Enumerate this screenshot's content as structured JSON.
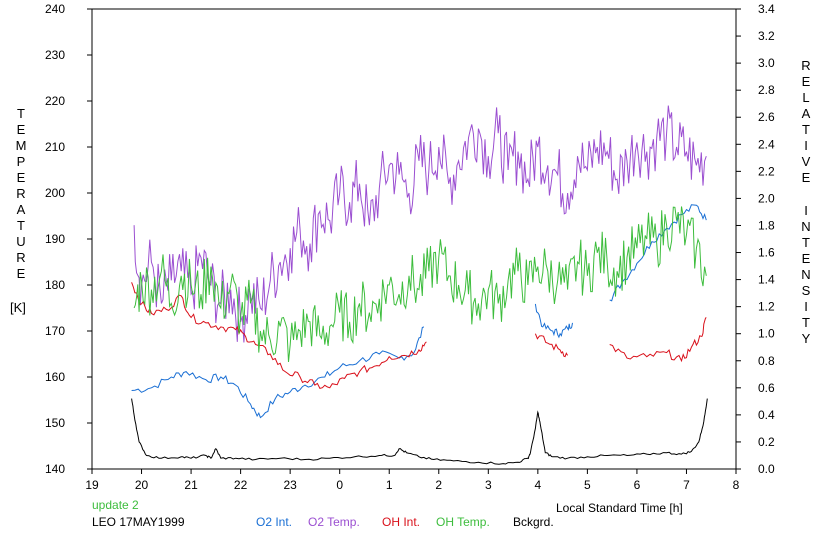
{
  "chart_data": {
    "type": "line",
    "y_left_label_letters": [
      "T",
      "E",
      "M",
      "P",
      "E",
      "R",
      "A",
      "T",
      "U",
      "R",
      "E"
    ],
    "y_left_unit": "[K]",
    "y_right_label_letters_1": [
      "R",
      "E",
      "L",
      "A",
      "T",
      "I",
      "V",
      "E"
    ],
    "y_right_label_letters_2": [
      "I",
      "N",
      "T",
      "E",
      "N",
      "S",
      "I",
      "T",
      "Y"
    ],
    "xlabel": "Local Standard Time [h]",
    "x_ticks": [
      {
        "pos": 19,
        "label": "19"
      },
      {
        "pos": 20,
        "label": "20"
      },
      {
        "pos": 21,
        "label": "21"
      },
      {
        "pos": 22,
        "label": "22"
      },
      {
        "pos": 23,
        "label": "23"
      },
      {
        "pos": 24,
        "label": "0"
      },
      {
        "pos": 25,
        "label": "1"
      },
      {
        "pos": 26,
        "label": "2"
      },
      {
        "pos": 27,
        "label": "3"
      },
      {
        "pos": 28,
        "label": "4"
      },
      {
        "pos": 29,
        "label": "5"
      },
      {
        "pos": 30,
        "label": "6"
      },
      {
        "pos": 31,
        "label": "7"
      },
      {
        "pos": 32,
        "label": "8"
      }
    ],
    "xlim": [
      19,
      32
    ],
    "ylim_left": [
      140,
      240
    ],
    "ylim_right": [
      0.0,
      3.4
    ],
    "y_left_ticks": [
      140,
      150,
      160,
      170,
      180,
      190,
      200,
      210,
      220,
      230,
      240
    ],
    "y_right_ticks": [
      "0.0",
      "0.2",
      "0.4",
      "0.6",
      "0.8",
      "1.0",
      "1.2",
      "1.4",
      "1.6",
      "1.8",
      "2.0",
      "2.2",
      "2.4",
      "2.6",
      "2.8",
      "3.0",
      "3.2",
      "3.4"
    ],
    "series": [
      {
        "name": "O2 Int.",
        "color": "#1a6fd4",
        "axis": "right",
        "segments": [
          {
            "x": [
              19.8,
              20.2,
              20.6,
              20.9,
              21.3,
              21.6,
              21.9,
              22.2,
              22.4,
              22.7,
              23.0,
              23.3,
              23.7,
              24.0,
              24.4,
              24.8,
              25.2,
              25.5,
              25.7
            ],
            "y": [
              0.58,
              0.6,
              0.68,
              0.72,
              0.66,
              0.68,
              0.62,
              0.48,
              0.38,
              0.52,
              0.57,
              0.62,
              0.68,
              0.75,
              0.8,
              0.85,
              0.82,
              0.86,
              1.05
            ]
          },
          {
            "x": [
              27.95,
              28.1,
              28.3,
              28.45,
              28.6,
              28.7
            ],
            "y": [
              1.22,
              1.05,
              1.02,
              1.0,
              1.04,
              1.08
            ]
          },
          {
            "x": [
              29.45,
              29.7,
              30.0,
              30.3,
              30.6,
              30.9,
              31.2,
              31.4
            ],
            "y": [
              1.25,
              1.38,
              1.52,
              1.68,
              1.78,
              1.88,
              1.95,
              1.84
            ]
          }
        ]
      },
      {
        "name": "O2 Temp.",
        "color": "#9b4fd1",
        "axis": "left",
        "segments": [
          {
            "x": [
              19.85,
              20.0,
              20.2,
              20.4,
              20.6,
              20.8,
              21.0,
              21.2,
              21.4,
              21.6,
              21.8,
              22.0,
              22.2,
              22.4,
              22.6,
              22.8,
              23.0,
              23.2,
              23.4,
              23.6,
              23.8,
              24.0,
              24.2,
              24.4,
              24.6,
              24.8,
              25.0,
              25.2,
              25.4,
              25.6,
              25.8,
              26.0,
              26.2,
              26.4,
              26.6,
              26.8,
              27.0,
              27.2,
              27.4,
              27.6,
              27.8,
              28.0,
              28.2,
              28.4,
              28.6,
              28.8,
              29.0,
              29.2,
              29.4,
              29.6,
              29.8,
              30.0,
              30.2,
              30.4,
              30.6,
              30.8,
              31.0,
              31.2,
              31.4
            ],
            "y": [
              193,
              180,
              185,
              176,
              181,
              183,
              178,
              186,
              180,
              176,
              179,
              172,
              178,
              175,
              181,
              185,
              188,
              192,
              189,
              196,
              194,
              200,
              198,
              202,
              193,
              201,
              206,
              204,
              200,
              207,
              205,
              210,
              202,
              207,
              212,
              214,
              208,
              213,
              205,
              209,
              203,
              210,
              206,
              204,
              200,
              208,
              205,
              210,
              209,
              203,
              207,
              211,
              209,
              212,
              213,
              210,
              209,
              206,
              208
            ]
          }
        ]
      },
      {
        "name": "OH Int.",
        "color": "#d9101a",
        "axis": "right",
        "segments": [
          {
            "x": [
              19.8,
              20.0,
              20.2,
              20.5,
              20.8,
              21.0,
              21.3,
              21.6,
              21.9,
              22.1,
              22.3,
              22.6,
              22.9,
              23.2,
              23.5,
              23.8,
              24.1,
              24.4,
              24.7,
              25.0,
              25.3,
              25.6,
              25.75
            ],
            "y": [
              1.38,
              1.22,
              1.15,
              1.18,
              1.28,
              1.12,
              1.08,
              1.05,
              1.03,
              0.98,
              0.92,
              0.85,
              0.72,
              0.68,
              0.62,
              0.6,
              0.67,
              0.72,
              0.76,
              0.83,
              0.84,
              0.88,
              0.94
            ]
          },
          {
            "x": [
              27.95,
              28.2,
              28.45,
              28.6
            ],
            "y": [
              1.0,
              0.93,
              0.88,
              0.84
            ]
          },
          {
            "x": [
              29.45,
              29.8,
              30.2,
              30.6,
              30.9,
              31.1,
              31.3,
              31.4
            ],
            "y": [
              0.92,
              0.82,
              0.83,
              0.86,
              0.8,
              0.9,
              0.98,
              1.12
            ]
          }
        ]
      },
      {
        "name": "OH Temp.",
        "color": "#3dbd3d",
        "axis": "left",
        "segments": [
          {
            "x": [
              19.85,
              20.0,
              20.2,
              20.4,
              20.6,
              20.8,
              21.0,
              21.2,
              21.4,
              21.6,
              21.8,
              22.0,
              22.2,
              22.4,
              22.6,
              22.8,
              23.0,
              23.2,
              23.4,
              23.6,
              23.8,
              24.0,
              24.2,
              24.4,
              24.6,
              24.8,
              25.0,
              25.2,
              25.4,
              25.6,
              25.8,
              26.0,
              26.2,
              26.4,
              26.6,
              26.8,
              27.0,
              27.2,
              27.4,
              27.6,
              27.8,
              28.0,
              28.2,
              28.4,
              28.6,
              28.8,
              29.0,
              29.2,
              29.4,
              29.6,
              29.8,
              30.0,
              30.2,
              30.4,
              30.6,
              30.8,
              31.0,
              31.2,
              31.4
            ],
            "y": [
              175,
              181,
              179,
              183,
              176,
              182,
              180,
              178,
              184,
              175,
              180,
              173,
              176,
              170,
              168,
              171,
              167,
              170,
              172,
              169,
              171,
              174,
              172,
              176,
              174,
              177,
              180,
              178,
              182,
              179,
              183,
              186,
              182,
              180,
              178,
              176,
              179,
              176,
              181,
              183,
              180,
              184,
              183,
              181,
              179,
              185,
              182,
              187,
              185,
              183,
              186,
              188,
              190,
              189,
              193,
              194,
              191,
              188,
              182
            ]
          }
        ]
      },
      {
        "name": "Bckgrd.",
        "color": "#000000",
        "axis": "right",
        "segments": [
          {
            "x": [
              19.8,
              19.85,
              19.95,
              20.1,
              20.4,
              20.8,
              21.0,
              21.3,
              21.4,
              21.5,
              21.6,
              21.9,
              22.3,
              22.8,
              23.3,
              23.8,
              24.3,
              24.8,
              25.1,
              25.2,
              25.35,
              25.6,
              25.9,
              26.3,
              26.8,
              27.3,
              27.6,
              27.8,
              27.85,
              27.95,
              28.0,
              28.05,
              28.15,
              28.3,
              28.6,
              29.0,
              29.4,
              29.8,
              30.2,
              30.6,
              30.9,
              31.1,
              31.25,
              31.35,
              31.42
            ],
            "y": [
              0.52,
              0.4,
              0.2,
              0.1,
              0.08,
              0.09,
              0.08,
              0.1,
              0.08,
              0.15,
              0.08,
              0.08,
              0.07,
              0.08,
              0.07,
              0.08,
              0.09,
              0.1,
              0.1,
              0.15,
              0.12,
              0.09,
              0.07,
              0.06,
              0.05,
              0.04,
              0.05,
              0.08,
              0.12,
              0.3,
              0.42,
              0.33,
              0.12,
              0.09,
              0.08,
              0.09,
              0.1,
              0.1,
              0.11,
              0.12,
              0.11,
              0.13,
              0.2,
              0.35,
              0.52
            ]
          }
        ]
      }
    ]
  },
  "footer": {
    "update_label": "update 2",
    "site_date": "LEO 17MAY1999"
  },
  "colors": {
    "axis": "#000000",
    "update": "#3dbd3d"
  }
}
